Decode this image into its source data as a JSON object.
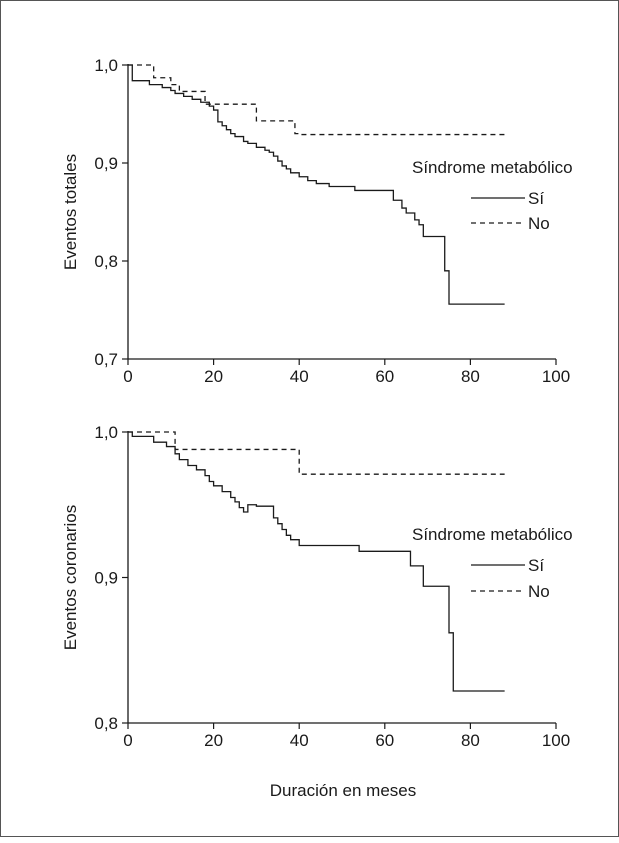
{
  "chart_data": [
    {
      "type": "line",
      "step": true,
      "title": "",
      "xlabel": "",
      "ylabel": "Eventos totales",
      "xlim": [
        0,
        100
      ],
      "ylim": [
        0.7,
        1.0
      ],
      "x_ticks": [
        0,
        20,
        40,
        60,
        80,
        100
      ],
      "x_tick_labels": [
        "0",
        "20",
        "40",
        "60",
        "80",
        "100"
      ],
      "y_ticks": [
        0.7,
        0.8,
        0.9,
        1.0
      ],
      "y_tick_labels": [
        "0,7",
        "0,8",
        "0,9",
        "1,0"
      ],
      "legend": {
        "title": "Síndrome metabólico",
        "placement": "right"
      },
      "series": [
        {
          "name": "Sí",
          "style": "solid",
          "x": [
            0,
            1,
            5,
            8,
            10,
            11,
            13,
            15,
            17,
            19,
            20,
            21,
            22,
            23,
            24,
            25,
            27,
            28,
            30,
            32,
            33,
            34,
            35,
            36,
            37,
            38,
            40,
            42,
            44,
            47,
            53,
            62,
            64,
            65,
            67,
            68,
            69,
            74,
            75,
            88
          ],
          "y": [
            1.0,
            0.984,
            0.98,
            0.977,
            0.974,
            0.971,
            0.968,
            0.965,
            0.962,
            0.958,
            0.954,
            0.942,
            0.938,
            0.934,
            0.93,
            0.927,
            0.922,
            0.92,
            0.916,
            0.913,
            0.911,
            0.907,
            0.902,
            0.897,
            0.894,
            0.89,
            0.886,
            0.882,
            0.879,
            0.876,
            0.872,
            0.862,
            0.854,
            0.849,
            0.842,
            0.837,
            0.825,
            0.79,
            0.756,
            0.756
          ]
        },
        {
          "name": "No",
          "style": "dashed",
          "x": [
            0,
            6,
            10,
            12,
            18,
            20,
            21,
            30,
            31,
            39,
            40,
            88
          ],
          "y": [
            1.0,
            0.987,
            0.98,
            0.973,
            0.96,
            0.96,
            0.96,
            0.943,
            0.943,
            0.93,
            0.929,
            0.929
          ]
        }
      ]
    },
    {
      "type": "line",
      "step": true,
      "title": "",
      "xlabel": "Duración en meses",
      "ylabel": "Eventos coronarios",
      "xlim": [
        0,
        100
      ],
      "ylim": [
        0.8,
        1.0
      ],
      "x_ticks": [
        0,
        20,
        40,
        60,
        80,
        100
      ],
      "x_tick_labels": [
        "0",
        "20",
        "40",
        "60",
        "80",
        "100"
      ],
      "y_ticks": [
        0.8,
        0.9,
        1.0
      ],
      "y_tick_labels": [
        "0,8",
        "0,9",
        "1,0"
      ],
      "legend": {
        "title": "Síndrome metabólico",
        "placement": "right"
      },
      "series": [
        {
          "name": "Sí",
          "style": "solid",
          "x": [
            0,
            1,
            6,
            9,
            11,
            12,
            14,
            16,
            18,
            19,
            20,
            22,
            24,
            25,
            26,
            27,
            28,
            30,
            34,
            35,
            36,
            37,
            38,
            40,
            54,
            66,
            69,
            75,
            76,
            88
          ],
          "y": [
            1.0,
            0.997,
            0.993,
            0.99,
            0.985,
            0.981,
            0.977,
            0.974,
            0.97,
            0.966,
            0.963,
            0.959,
            0.955,
            0.952,
            0.948,
            0.945,
            0.95,
            0.949,
            0.941,
            0.937,
            0.933,
            0.929,
            0.926,
            0.922,
            0.918,
            0.908,
            0.894,
            0.862,
            0.822,
            0.822
          ]
        },
        {
          "name": "No",
          "style": "dashed",
          "x": [
            0,
            11,
            40,
            88
          ],
          "y": [
            1.0,
            0.988,
            0.971,
            0.971
          ]
        }
      ]
    }
  ]
}
